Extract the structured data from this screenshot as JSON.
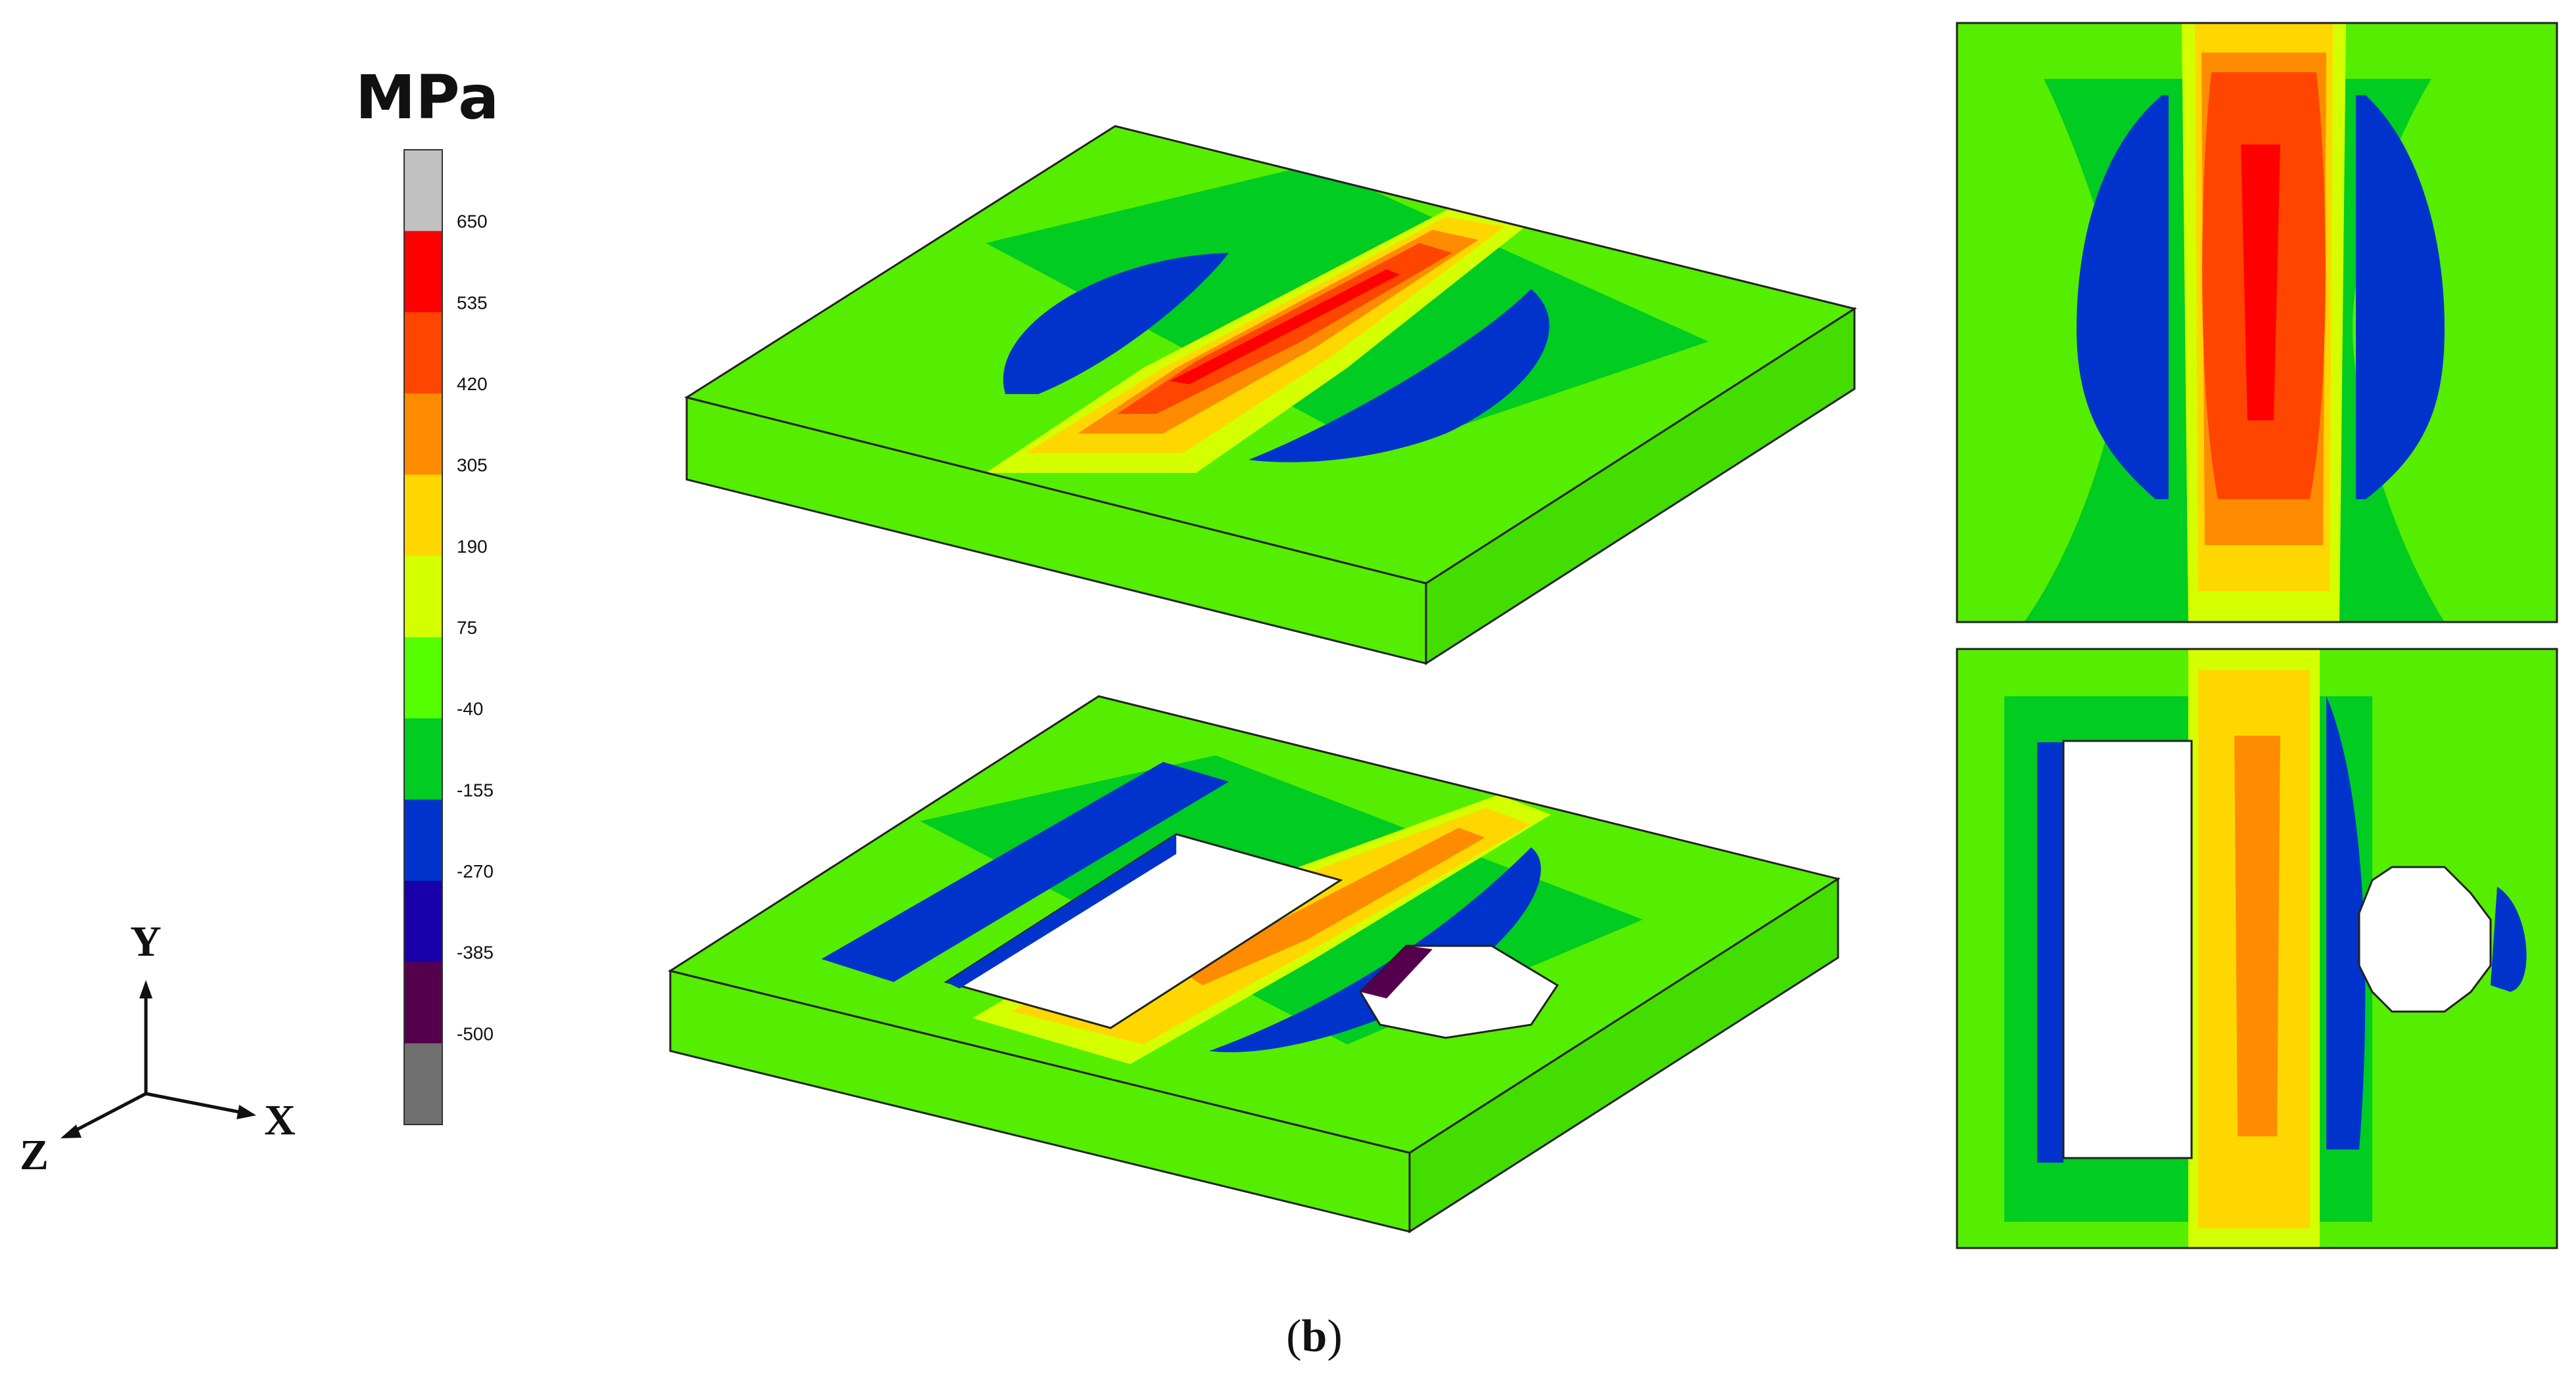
{
  "legend": {
    "unit": "MPa",
    "bands": [
      {
        "color": "#c0c0c0"
      },
      {
        "color": "#ff0000"
      },
      {
        "color": "#ff4500"
      },
      {
        "color": "#ff8c00"
      },
      {
        "color": "#ffd700"
      },
      {
        "color": "#d4ff00"
      },
      {
        "color": "#55ff00"
      },
      {
        "color": "#00cc22"
      },
      {
        "color": "#0033cc"
      },
      {
        "color": "#1a00aa"
      },
      {
        "color": "#55004d"
      },
      {
        "color": "#707070"
      }
    ],
    "tick_labels": [
      "650",
      "535",
      "420",
      "305",
      "190",
      "75",
      "-40",
      "-155",
      "-270",
      "-385",
      "-500"
    ]
  },
  "axes_triad": {
    "y": "Y",
    "x": "X",
    "z": "Z"
  },
  "caption": {
    "open": "(",
    "letter": "b",
    "close": ")"
  },
  "colors": {
    "green_light": "#55ee00",
    "green": "#00cc22",
    "blue": "#0033cc",
    "yellow": "#ffd700",
    "orange": "#ff8c00",
    "red_orange": "#ff4500",
    "red": "#ff0000",
    "purple": "#55004d",
    "edge": "#222222"
  }
}
